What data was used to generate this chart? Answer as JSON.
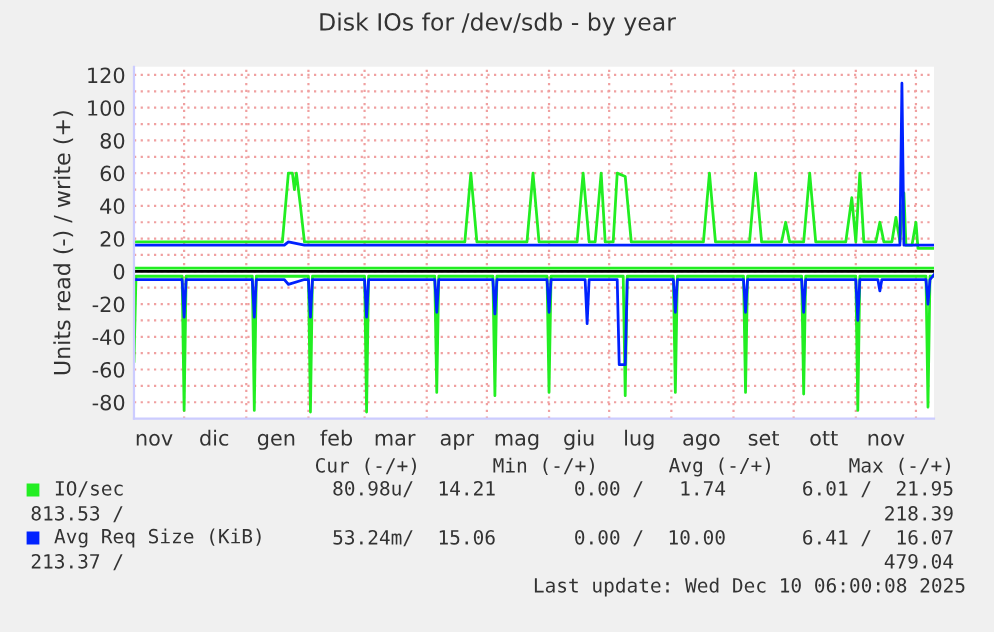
{
  "chart_data": {
    "type": "line",
    "title": "Disk IOs for /dev/sdb - by year",
    "ylabel": "Units read (-) / write (+)",
    "xlim": [
      "2024-11-06",
      "2025-12-10"
    ],
    "ylim": [
      -90,
      125
    ],
    "xticks": [
      {
        "value": "2024-11-16",
        "label": "nov"
      },
      {
        "value": "2024-12-01",
        "label": null
      },
      {
        "value": "2024-12-16",
        "label": "dic"
      },
      {
        "value": "2025-01-01",
        "label": null
      },
      {
        "value": "2025-01-16",
        "label": "gen"
      },
      {
        "value": "2025-02-01",
        "label": null
      },
      {
        "value": "2025-02-15",
        "label": "feb"
      },
      {
        "value": "2025-03-01",
        "label": null
      },
      {
        "value": "2025-03-16",
        "label": "mar"
      },
      {
        "value": "2025-04-01",
        "label": null
      },
      {
        "value": "2025-04-16",
        "label": "apr"
      },
      {
        "value": "2025-05-01",
        "label": null
      },
      {
        "value": "2025-05-16",
        "label": "mag"
      },
      {
        "value": "2025-06-01",
        "label": null
      },
      {
        "value": "2025-06-16",
        "label": "giu"
      },
      {
        "value": "2025-07-01",
        "label": null
      },
      {
        "value": "2025-07-16",
        "label": "lug"
      },
      {
        "value": "2025-08-01",
        "label": null
      },
      {
        "value": "2025-08-16",
        "label": "ago"
      },
      {
        "value": "2025-09-01",
        "label": null
      },
      {
        "value": "2025-09-16",
        "label": "set"
      },
      {
        "value": "2025-10-01",
        "label": null
      },
      {
        "value": "2025-10-16",
        "label": "ott"
      },
      {
        "value": "2025-11-01",
        "label": null
      },
      {
        "value": "2025-11-16",
        "label": "nov"
      },
      {
        "value": "2025-12-01",
        "label": null
      }
    ],
    "yticks": [
      -80,
      {
        "value": -70,
        "label": null
      },
      -60,
      {
        "value": -50,
        "label": null
      },
      -40,
      {
        "value": -30,
        "label": null
      },
      -20,
      {
        "value": -10,
        "label": null
      },
      0,
      {
        "value": 10,
        "label": null
      },
      20,
      {
        "value": 30,
        "label": null
      },
      40,
      {
        "value": 50,
        "label": null
      },
      60,
      {
        "value": 70,
        "label": null
      },
      80,
      {
        "value": 90,
        "label": null
      },
      100,
      {
        "value": 110,
        "label": null
      },
      120
    ],
    "grid": true,
    "legend": "bottom",
    "ref_lines": [
      {
        "axis": "y",
        "value": 2,
        "color": "#22ee22"
      },
      {
        "axis": "y",
        "value": 0,
        "color": "#000000"
      }
    ],
    "series": [
      {
        "name": "IO/sec",
        "color": "#22ee22",
        "x": [
          "2024-11-06",
          "2025-01-19",
          "2025-01-22",
          "2025-01-24",
          "2025-01-25",
          "2025-01-26",
          "2025-01-28",
          "2025-01-30",
          "2025-04-20",
          "2025-04-23",
          "2025-04-26",
          "2025-05-21",
          "2025-05-24",
          "2025-05-27",
          "2025-06-15",
          "2025-06-18",
          "2025-06-21",
          "2025-06-24",
          "2025-06-27",
          "2025-06-29",
          "2025-07-03",
          "2025-07-05",
          "2025-07-09",
          "2025-07-12",
          "2025-08-17",
          "2025-08-20",
          "2025-08-23",
          "2025-09-09",
          "2025-09-12",
          "2025-09-15",
          "2025-09-25",
          "2025-09-27",
          "2025-09-29",
          "2025-10-06",
          "2025-10-09",
          "2025-10-12",
          "2025-10-27",
          "2025-10-30",
          "2025-11-01",
          "2025-11-03",
          "2025-11-05",
          "2025-11-11",
          "2025-11-13",
          "2025-11-15",
          "2025-11-19",
          "2025-11-21",
          "2025-11-23",
          "2025-11-25",
          "2025-11-26",
          "2025-11-29",
          "2025-12-01",
          "2025-12-02",
          "2025-12-10"
        ],
        "values": [
          18,
          18,
          60,
          60,
          50,
          60,
          40,
          18,
          18,
          60,
          18,
          18,
          60,
          18,
          18,
          60,
          18,
          18,
          60,
          18,
          18,
          60,
          58,
          18,
          18,
          60,
          18,
          18,
          60,
          18,
          18,
          30,
          18,
          18,
          60,
          18,
          18,
          45,
          18,
          60,
          18,
          18,
          30,
          18,
          18,
          33,
          18,
          48,
          16,
          16,
          30,
          14,
          14
        ]
      },
      {
        "color": "#22ee22",
        "x": [
          "2024-11-06",
          "2024-11-07",
          "2024-11-30",
          "2024-12-01",
          "2024-12-02",
          "2025-01-04",
          "2025-01-05",
          "2025-01-06",
          "2025-02-01",
          "2025-02-02",
          "2025-02-03",
          "2025-03-01",
          "2025-03-02",
          "2025-03-03",
          "2025-04-05",
          "2025-04-06",
          "2025-04-07",
          "2025-05-04",
          "2025-05-05",
          "2025-05-06",
          "2025-05-31",
          "2025-06-01",
          "2025-06-02",
          "2025-07-08",
          "2025-07-09",
          "2025-07-10",
          "2025-08-02",
          "2025-08-03",
          "2025-08-04",
          "2025-09-06",
          "2025-09-07",
          "2025-09-08",
          "2025-10-05",
          "2025-10-06",
          "2025-10-07",
          "2025-11-01",
          "2025-11-02",
          "2025-11-03",
          "2025-12-06",
          "2025-12-07",
          "2025-12-08",
          "2025-12-10"
        ],
        "values": [
          -55,
          -3,
          -3,
          -85,
          -3,
          -3,
          -85,
          -3,
          -3,
          -86,
          -3,
          -3,
          -86,
          -3,
          -3,
          -74,
          -3,
          -3,
          -76,
          -3,
          -3,
          -74,
          -3,
          -3,
          -76,
          -3,
          -3,
          -74,
          -3,
          -3,
          -74,
          -3,
          -3,
          -75,
          -3,
          -3,
          -85,
          -3,
          -3,
          -83,
          -3,
          -3
        ]
      },
      {
        "name": "Avg Req Size (KiB)",
        "color": "#0022ff",
        "x": [
          "2024-11-06",
          "2025-01-20",
          "2025-01-22",
          "2025-01-30",
          "2025-11-23",
          "2025-11-24",
          "2025-11-25",
          "2025-12-10"
        ],
        "values": [
          16,
          16,
          18,
          16,
          16,
          115,
          16,
          16
        ]
      },
      {
        "color": "#0022ff",
        "x": [
          "2024-11-06",
          "2024-11-30",
          "2024-12-01",
          "2024-12-02",
          "2025-01-04",
          "2025-01-05",
          "2025-01-06",
          "2025-01-20",
          "2025-01-22",
          "2025-01-30",
          "2025-02-01",
          "2025-02-02",
          "2025-02-03",
          "2025-03-01",
          "2025-03-02",
          "2025-03-03",
          "2025-04-05",
          "2025-04-06",
          "2025-04-07",
          "2025-05-04",
          "2025-05-05",
          "2025-05-06",
          "2025-05-31",
          "2025-06-01",
          "2025-06-02",
          "2025-06-19",
          "2025-06-20",
          "2025-06-21",
          "2025-07-05",
          "2025-07-06",
          "2025-07-09",
          "2025-07-10",
          "2025-08-02",
          "2025-08-03",
          "2025-08-04",
          "2025-09-06",
          "2025-09-07",
          "2025-09-08",
          "2025-10-05",
          "2025-10-06",
          "2025-10-07",
          "2025-11-01",
          "2025-11-02",
          "2025-11-03",
          "2025-11-12",
          "2025-11-13",
          "2025-11-14",
          "2025-12-06",
          "2025-12-07",
          "2025-12-08",
          "2025-12-10"
        ],
        "values": [
          -5,
          -5,
          -28,
          -5,
          -5,
          -28,
          -5,
          -5,
          -8,
          -5,
          -5,
          -28,
          -5,
          -5,
          -28,
          -5,
          -5,
          -25,
          -5,
          -5,
          -26,
          -5,
          -5,
          -25,
          -5,
          -5,
          -32,
          -5,
          -5,
          -57,
          -57,
          -5,
          -5,
          -25,
          -5,
          -5,
          -25,
          -5,
          -5,
          -25,
          -5,
          -5,
          -30,
          -5,
          -5,
          -12,
          -5,
          -5,
          -20,
          -5,
          -2
        ]
      }
    ],
    "annotations": [
      "Cur (-/+)",
      "Min (-/+)",
      "Avg (-/+)",
      "Max (-/+)",
      "80.98u/  14.21",
      "0.00 /   1.74",
      "6.01 /  21.95",
      "813.53 /",
      "218.39",
      "53.24m/  15.06",
      "0.00 /  10.00",
      "6.41 /  16.07",
      "213.37 /",
      "479.04",
      "Last update: Wed Dec 10 06:00:08 2025"
    ]
  }
}
